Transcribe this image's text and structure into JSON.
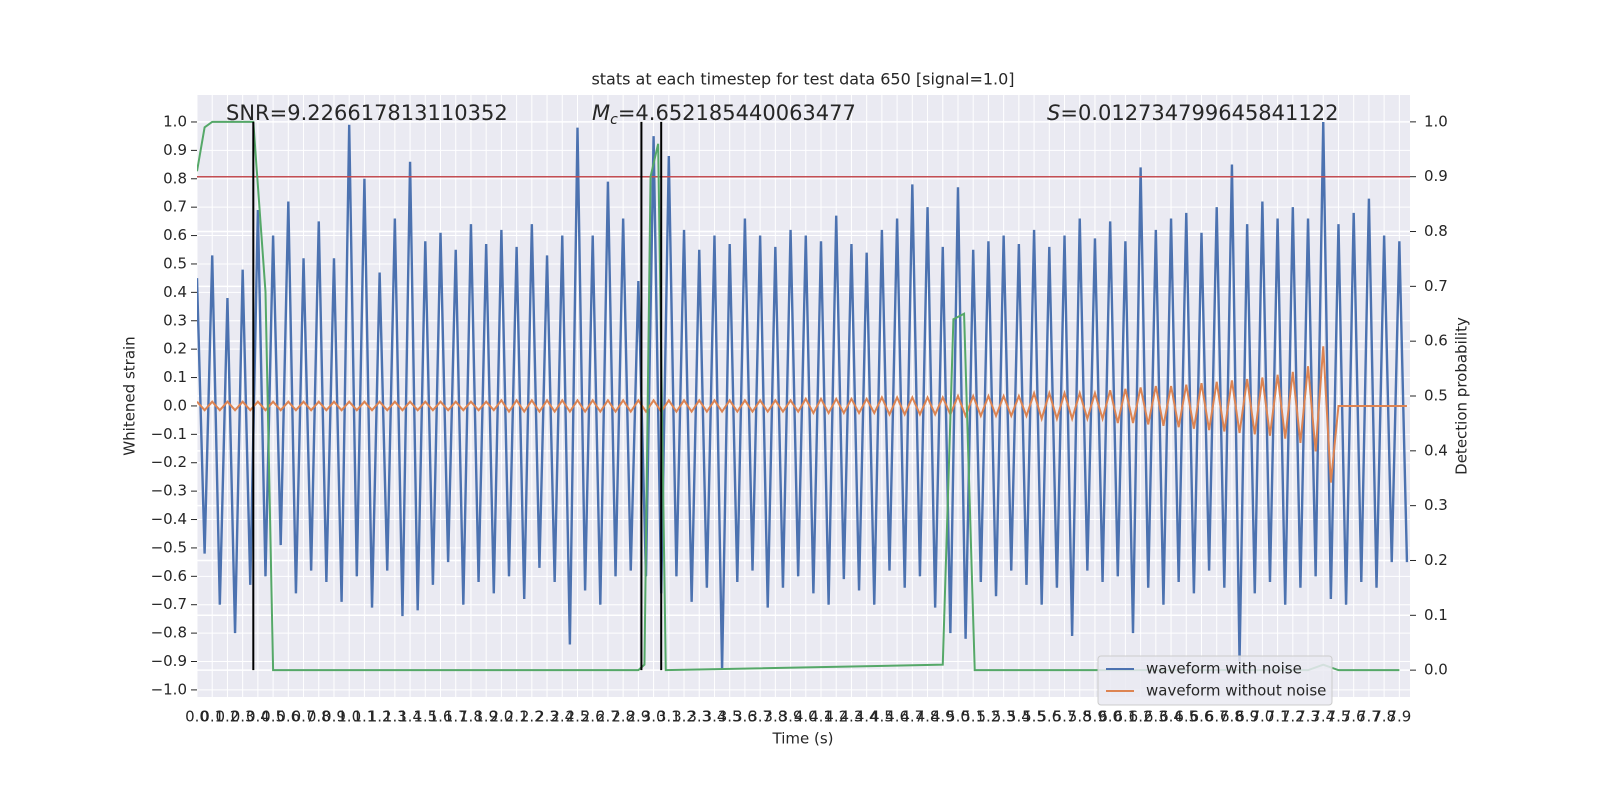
{
  "chart_data": {
    "type": "line",
    "title": "stats at each timestep for test data 650 [signal=1.0]",
    "xlabel": "Time (s)",
    "ylabel": "Whitened strain",
    "y2label": "Detection probability",
    "grid": true,
    "legend": "lower right",
    "annotations": [
      {
        "text": "SNR=9.226617813110352"
      },
      {
        "symbol": "M",
        "subscript": "c",
        "text": "=4.652185440063477"
      },
      {
        "symbol": "S",
        "text": "=0.012734799645841122"
      }
    ],
    "xlim": [
      0,
      7.97
    ],
    "ylim": [
      -1.025,
      1.095
    ],
    "y2lim": [
      -0.049,
      1.049
    ],
    "xticks": [
      {
        "value": 0,
        "label": "0.0"
      },
      0.1,
      0.2,
      0.3,
      0.4,
      0.5,
      0.6,
      0.7,
      0.8,
      0.9,
      {
        "value": 1,
        "label": "1.0"
      },
      1.1,
      1.2,
      1.3,
      1.4,
      1.5,
      1.6,
      1.7,
      1.8,
      1.9,
      {
        "value": 2,
        "label": "2.0"
      },
      2.1,
      2.2,
      2.3,
      2.4,
      2.5,
      2.6,
      2.7,
      2.8,
      2.9,
      {
        "value": 3,
        "label": "3.0"
      },
      3.1,
      3.2,
      3.3,
      3.4,
      3.5,
      3.6,
      3.7,
      3.8,
      3.9,
      {
        "value": 4,
        "label": "4.0"
      },
      4.1,
      4.2,
      4.3,
      4.4,
      4.5,
      4.6,
      4.7,
      4.8,
      4.9,
      {
        "value": 5,
        "label": "5.0"
      },
      5.1,
      5.2,
      5.3,
      5.4,
      5.5,
      5.6,
      5.7,
      5.8,
      5.9,
      {
        "value": 6,
        "label": "6.0"
      },
      6.1,
      6.2,
      6.3,
      6.4,
      6.5,
      6.6,
      6.7,
      6.8,
      6.9,
      {
        "value": 7,
        "label": "7.0"
      },
      7.1,
      7.2,
      7.3,
      7.4,
      7.5,
      7.6,
      7.7,
      7.8,
      7.9
    ],
    "yticks": [
      {
        "value": -1,
        "label": "−1.0"
      },
      {
        "value": -0.9,
        "label": "−0.9"
      },
      {
        "value": -0.8,
        "label": "−0.8"
      },
      {
        "value": -0.7,
        "label": "−0.7"
      },
      {
        "value": -0.6,
        "label": "−0.6"
      },
      {
        "value": -0.5,
        "label": "−0.5"
      },
      {
        "value": -0.4,
        "label": "−0.4"
      },
      {
        "value": -0.3,
        "label": "−0.3"
      },
      {
        "value": -0.2,
        "label": "−0.2"
      },
      {
        "value": -0.1,
        "label": "−0.1"
      },
      {
        "value": 0,
        "label": "0.0"
      },
      0.1,
      0.2,
      0.3,
      0.4,
      0.5,
      0.6,
      0.7,
      0.8,
      0.9,
      {
        "value": 1,
        "label": "1.0"
      }
    ],
    "y2ticks": [
      {
        "value": 0,
        "label": "0.0"
      },
      0.1,
      0.2,
      0.3,
      0.4,
      0.5,
      0.6,
      0.7,
      0.8,
      0.9,
      {
        "value": 1,
        "label": "1.0"
      }
    ],
    "x": [
      0,
      0.05,
      0.1,
      0.15,
      0.2,
      0.25,
      0.3,
      0.35,
      0.4,
      0.45,
      0.5,
      0.55,
      0.6,
      0.65,
      0.7,
      0.75,
      0.8,
      0.85,
      0.9,
      0.95,
      1.0,
      1.05,
      1.1,
      1.15,
      1.2,
      1.25,
      1.3,
      1.35,
      1.4,
      1.45,
      1.5,
      1.55,
      1.6,
      1.65,
      1.7,
      1.75,
      1.8,
      1.85,
      1.9,
      1.95,
      2.0,
      2.05,
      2.1,
      2.15,
      2.2,
      2.25,
      2.3,
      2.35,
      2.4,
      2.45,
      2.5,
      2.55,
      2.6,
      2.65,
      2.7,
      2.75,
      2.8,
      2.85,
      2.9,
      2.95,
      3.0,
      3.05,
      3.1,
      3.15,
      3.2,
      3.25,
      3.3,
      3.35,
      3.4,
      3.45,
      3.5,
      3.55,
      3.6,
      3.65,
      3.7,
      3.75,
      3.8,
      3.85,
      3.9,
      3.95,
      4.0,
      4.05,
      4.1,
      4.15,
      4.2,
      4.25,
      4.3,
      4.35,
      4.4,
      4.45,
      4.5,
      4.55,
      4.6,
      4.65,
      4.7,
      4.75,
      4.8,
      4.85,
      4.9,
      4.95,
      5.0,
      5.05,
      5.1,
      5.15,
      5.2,
      5.25,
      5.3,
      5.35,
      5.4,
      5.45,
      5.5,
      5.55,
      5.6,
      5.65,
      5.7,
      5.75,
      5.8,
      5.85,
      5.9,
      5.95,
      6.0,
      6.05,
      6.1,
      6.15,
      6.2,
      6.25,
      6.3,
      6.35,
      6.4,
      6.45,
      6.5,
      6.55,
      6.6,
      6.65,
      6.7,
      6.75,
      6.8,
      6.85,
      6.9,
      6.95,
      7.0,
      7.05,
      7.1,
      7.15,
      7.2,
      7.25,
      7.3,
      7.35,
      7.4,
      7.45,
      7.5,
      7.55,
      7.6,
      7.65,
      7.7,
      7.75,
      7.8,
      7.85,
      7.9,
      7.95
    ],
    "series": [
      {
        "name": "waveform with noise",
        "color": "#4c72b0",
        "values": [
          0.45,
          -0.52,
          0.53,
          -0.7,
          0.38,
          -0.8,
          0.48,
          -0.63,
          0.69,
          -0.6,
          0.6,
          -0.49,
          0.72,
          -0.66,
          0.52,
          -0.58,
          0.65,
          -0.62,
          0.52,
          -0.69,
          0.99,
          -0.6,
          0.8,
          -0.71,
          0.47,
          -0.58,
          0.66,
          -0.74,
          0.86,
          -0.72,
          0.58,
          -0.63,
          0.61,
          -0.55,
          0.55,
          -0.7,
          0.64,
          -0.62,
          0.57,
          -0.66,
          0.62,
          -0.6,
          0.56,
          -0.68,
          0.64,
          -0.57,
          0.53,
          -0.62,
          0.6,
          -0.84,
          0.98,
          -0.65,
          0.6,
          -0.7,
          0.79,
          -0.6,
          0.66,
          -0.58,
          0.44,
          -0.6,
          0.95,
          -0.66,
          0.88,
          -0.6,
          0.62,
          -0.69,
          0.55,
          -0.64,
          0.6,
          -0.93,
          0.57,
          -0.62,
          0.66,
          -0.58,
          0.6,
          -0.71,
          0.56,
          -0.64,
          0.62,
          -0.6,
          0.6,
          -0.66,
          0.58,
          -0.7,
          0.67,
          -0.61,
          0.57,
          -0.65,
          0.54,
          -0.7,
          0.62,
          -0.58,
          0.66,
          -0.64,
          0.78,
          -0.6,
          0.7,
          -0.71,
          0.56,
          -0.8,
          0.77,
          -0.82,
          0.55,
          -0.62,
          0.58,
          -0.67,
          0.6,
          -0.58,
          0.57,
          -0.63,
          0.62,
          -0.7,
          0.56,
          -0.64,
          0.6,
          -0.81,
          0.66,
          -0.58,
          0.59,
          -0.62,
          0.65,
          -0.6,
          0.58,
          -0.8,
          0.84,
          -0.64,
          0.62,
          -0.7,
          0.66,
          -0.62,
          0.68,
          -0.66,
          0.61,
          -0.58,
          0.7,
          -0.64,
          0.85,
          -0.9,
          0.64,
          -0.66,
          0.72,
          -0.62,
          0.66,
          -0.7,
          0.7,
          -0.64,
          0.66,
          -0.6,
          1.0,
          -0.68,
          0.64,
          -0.7,
          0.68,
          -0.62,
          0.73,
          -0.64,
          0.6,
          -0.55,
          0.58,
          -0.55
        ]
      },
      {
        "name": "waveform without noise",
        "color": "#dd8452",
        "values": [
          0.015,
          -0.015,
          0.015,
          -0.015,
          0.015,
          -0.015,
          0.015,
          -0.015,
          0.015,
          -0.015,
          0.015,
          -0.015,
          0.015,
          -0.015,
          0.015,
          -0.015,
          0.015,
          -0.015,
          0.015,
          -0.015,
          0.015,
          -0.015,
          0.015,
          -0.015,
          0.015,
          -0.015,
          0.015,
          -0.015,
          0.015,
          -0.015,
          0.015,
          -0.015,
          0.015,
          -0.015,
          0.015,
          -0.015,
          0.015,
          -0.015,
          0.015,
          -0.015,
          0.02,
          -0.02,
          0.02,
          -0.02,
          0.02,
          -0.02,
          0.02,
          -0.02,
          0.02,
          -0.02,
          0.02,
          -0.02,
          0.02,
          -0.02,
          0.02,
          -0.02,
          0.02,
          -0.02,
          0.02,
          -0.02,
          0.02,
          -0.02,
          0.02,
          -0.02,
          0.02,
          -0.02,
          0.02,
          -0.02,
          0.02,
          -0.02,
          0.02,
          -0.02,
          0.02,
          -0.02,
          0.02,
          -0.02,
          0.02,
          -0.02,
          0.02,
          -0.02,
          0.025,
          -0.025,
          0.025,
          -0.025,
          0.025,
          -0.025,
          0.025,
          -0.025,
          0.025,
          -0.025,
          0.03,
          -0.03,
          0.03,
          -0.03,
          0.03,
          -0.03,
          0.03,
          -0.03,
          0.03,
          -0.03,
          0.035,
          -0.035,
          0.035,
          -0.035,
          0.035,
          -0.035,
          0.035,
          -0.035,
          0.035,
          -0.035,
          0.045,
          -0.045,
          0.045,
          -0.045,
          0.045,
          -0.045,
          0.045,
          -0.045,
          0.045,
          -0.045,
          0.055,
          -0.06,
          0.06,
          -0.06,
          0.065,
          -0.065,
          0.07,
          -0.07,
          0.07,
          -0.075,
          0.075,
          -0.08,
          0.08,
          -0.085,
          0.085,
          -0.09,
          0.09,
          -0.095,
          0.095,
          -0.1,
          0.1,
          -0.105,
          0.11,
          -0.115,
          0.12,
          -0.13,
          0.14,
          -0.16,
          0.21,
          -0.27,
          0,
          0,
          0,
          0,
          0,
          0,
          0,
          0,
          0,
          0
        ]
      }
    ],
    "detection": {
      "color": "#55a868",
      "axis": "y2",
      "x": [
        0,
        0.05,
        0.1,
        0.37,
        0.45,
        0.5,
        2.9,
        2.94,
        2.98,
        3.03,
        3.08,
        4.9,
        4.97,
        5.04,
        5.11,
        7.3,
        7.4,
        7.5,
        7.9
      ],
      "values": [
        0.91,
        0.99,
        1.0,
        1.0,
        0.69,
        0,
        0,
        0.01,
        0.9,
        0.96,
        0,
        0.01,
        0.64,
        0.65,
        0,
        0,
        0.01,
        0,
        0
      ]
    },
    "threshold": {
      "y": 0.9,
      "axis": "y2",
      "color": "#c44e52"
    },
    "vlines": {
      "x": [
        0.37,
        2.92,
        3.05
      ],
      "ymin": 0,
      "ymax": 1,
      "axis": "y2",
      "color": "#000000"
    }
  }
}
